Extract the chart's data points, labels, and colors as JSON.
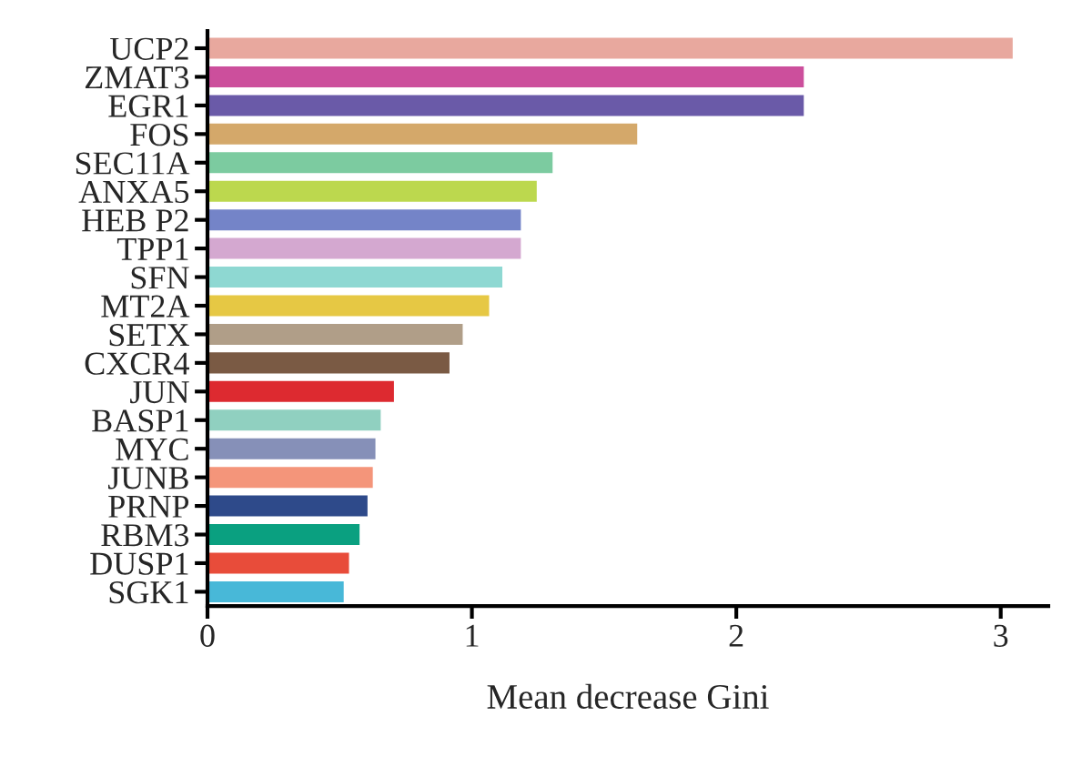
{
  "chart_data": {
    "type": "bar",
    "orientation": "horizontal",
    "xlabel": "Mean decrease Gini",
    "categories": [
      "UCP2",
      "ZMAT3",
      "EGR1",
      "FOS",
      "SEC11A",
      "ANXA5",
      "HEB P2",
      "TPP1",
      "SFN",
      "MT2A",
      "SETX",
      "CXCR4",
      "JUN",
      "BASP1",
      "MYC",
      "JUNB",
      "PRNP",
      "RBM3",
      "DUSP1",
      "SGK1"
    ],
    "values": [
      3.05,
      2.26,
      2.26,
      1.63,
      1.31,
      1.25,
      1.19,
      1.19,
      1.12,
      1.07,
      0.97,
      0.92,
      0.71,
      0.66,
      0.64,
      0.63,
      0.61,
      0.58,
      0.54,
      0.52
    ],
    "colors": [
      "#e8a89e",
      "#cc4f9c",
      "#6a5aa8",
      "#d4a86a",
      "#7ccba0",
      "#bcd84e",
      "#7484c8",
      "#d4a8d0",
      "#8ed8d2",
      "#e6c844",
      "#b09e88",
      "#7a5a44",
      "#dd2a30",
      "#90d0c0",
      "#8690b8",
      "#f4957a",
      "#2e4a8a",
      "#0aa080",
      "#e84c3a",
      "#48b8d8"
    ],
    "xlim": [
      0,
      3.18
    ],
    "xticks": [
      0,
      1,
      2,
      3
    ],
    "grid": false
  }
}
